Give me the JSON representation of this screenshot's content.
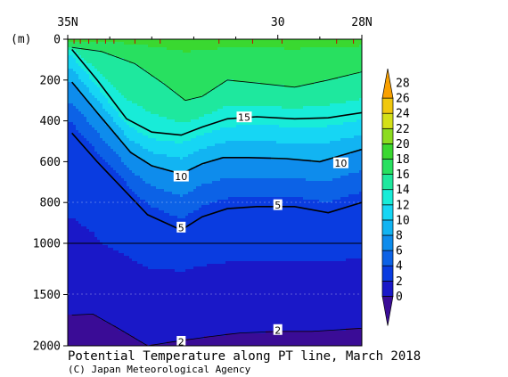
{
  "chart_data": {
    "type": "heatmap",
    "title": "Potential Temperature along PT line, March 2018",
    "credit": "(C) Japan Meteorological Agency",
    "x_axis": {
      "tick_labels": [
        "35N",
        "30",
        "28N"
      ],
      "range": [
        35,
        28
      ]
    },
    "y_axis": {
      "unit_label": "(m)",
      "tick_labels": [
        "0",
        "200",
        "400",
        "600",
        "800",
        "1000",
        "1500",
        "2000"
      ],
      "range": [
        0,
        2000
      ],
      "scale_change_at": 1000
    },
    "colorbar": {
      "tick_labels": [
        "0",
        "2",
        "4",
        "6",
        "8",
        "10",
        "12",
        "14",
        "16",
        "18",
        "20",
        "22",
        "24",
        "26",
        "28"
      ],
      "colors": [
        "#3a0c96",
        "#1a18c8",
        "#0a3ce0",
        "#0c62e6",
        "#0e8cec",
        "#12b4f2",
        "#16d6f4",
        "#18ecd8",
        "#1ee89e",
        "#28e060",
        "#3ad830",
        "#8cdc20",
        "#d4e018",
        "#f0c80e",
        "#f8a000"
      ]
    },
    "isotherm_labels": [
      {
        "value": "15",
        "lat": 30.8,
        "depth": 385
      },
      {
        "value": "10",
        "lat": 32.3,
        "depth": 675
      },
      {
        "value": "10",
        "lat": 28.5,
        "depth": 610
      },
      {
        "value": "5",
        "lat": 30.0,
        "depth": 815
      },
      {
        "value": "5",
        "lat": 32.3,
        "depth": 925
      },
      {
        "value": "2",
        "lat": 32.3,
        "depth": 1965
      },
      {
        "value": "2",
        "lat": 30.0,
        "depth": 1850
      }
    ],
    "isotherms": [
      {
        "value": 18,
        "points": [
          [
            34.9,
            40
          ],
          [
            34.2,
            60
          ],
          [
            33.4,
            120
          ],
          [
            32.7,
            220
          ],
          [
            32.2,
            300
          ],
          [
            31.8,
            280
          ],
          [
            31.2,
            200
          ],
          [
            30.5,
            215
          ],
          [
            29.6,
            235
          ],
          [
            28.8,
            200
          ],
          [
            28.0,
            160
          ]
        ]
      },
      {
        "value": 15,
        "points": [
          [
            34.9,
            50
          ],
          [
            34.3,
            200
          ],
          [
            33.6,
            390
          ],
          [
            33.0,
            455
          ],
          [
            32.3,
            470
          ],
          [
            31.8,
            430
          ],
          [
            31.2,
            390
          ],
          [
            30.5,
            380
          ],
          [
            29.6,
            390
          ],
          [
            28.8,
            385
          ],
          [
            28.0,
            360
          ]
        ]
      },
      {
        "value": 10,
        "points": [
          [
            34.9,
            210
          ],
          [
            34.3,
            360
          ],
          [
            33.5,
            555
          ],
          [
            33.0,
            620
          ],
          [
            32.3,
            660
          ],
          [
            31.8,
            610
          ],
          [
            31.3,
            580
          ],
          [
            30.7,
            580
          ],
          [
            29.8,
            585
          ],
          [
            29.0,
            600
          ],
          [
            28.0,
            540
          ]
        ]
      },
      {
        "value": 5,
        "points": [
          [
            34.9,
            460
          ],
          [
            34.3,
            600
          ],
          [
            33.7,
            730
          ],
          [
            33.1,
            860
          ],
          [
            32.3,
            935
          ],
          [
            31.8,
            870
          ],
          [
            31.2,
            830
          ],
          [
            30.5,
            820
          ],
          [
            29.6,
            820
          ],
          [
            28.8,
            850
          ],
          [
            28.0,
            800
          ]
        ]
      },
      {
        "value": 2,
        "points": [
          [
            34.9,
            1700
          ],
          [
            34.4,
            1690
          ],
          [
            33.8,
            1830
          ],
          [
            33.1,
            2000
          ],
          [
            32.4,
            1955
          ],
          [
            31.6,
            1910
          ],
          [
            30.9,
            1875
          ],
          [
            30.0,
            1860
          ],
          [
            29.2,
            1860
          ],
          [
            28.0,
            1830
          ]
        ]
      }
    ],
    "station_marks_lat": [
      34.85,
      34.7,
      34.5,
      34.3,
      34.1,
      33.9,
      33.4,
      32.8,
      31.4,
      30.6,
      29.9,
      28.6,
      28.2
    ]
  }
}
